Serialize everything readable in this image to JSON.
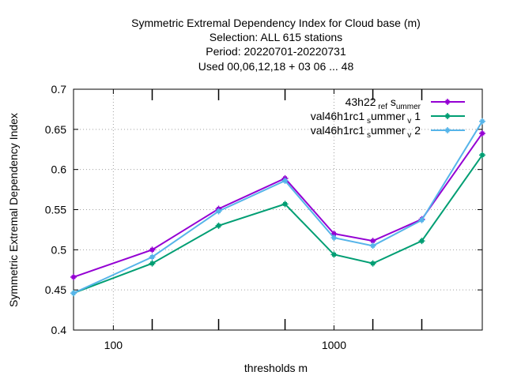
{
  "chart_data": {
    "type": "line",
    "title_lines": [
      "Symmetric Extremal Dependency Index  for Cloud base (m)",
      "Selection: ALL    615 stations",
      "Period: 20220701-20220731",
      "Used  00,06,12,18  + 03 06 ... 48"
    ],
    "xlabel": "thresholds m",
    "ylabel": "Symmetric Extremal Dependency Index",
    "x_scale": "log",
    "xlim": [
      66,
      4700
    ],
    "ylim": [
      0.4,
      0.7
    ],
    "x_tick_labels": [
      {
        "value": 100,
        "label": "100"
      },
      {
        "value": 1000,
        "label": "1000"
      }
    ],
    "y_tick_labels": [
      {
        "value": 0.4,
        "label": "0.4"
      },
      {
        "value": 0.45,
        "label": "0.45"
      },
      {
        "value": 0.5,
        "label": "0.5"
      },
      {
        "value": 0.55,
        "label": "0.55"
      },
      {
        "value": 0.6,
        "label": "0.6"
      },
      {
        "value": 0.65,
        "label": "0.65"
      },
      {
        "value": 0.7,
        "label": "0.7"
      }
    ],
    "x_tick_marks": [
      150,
      300,
      600,
      1500,
      2500
    ],
    "grid": true,
    "legend_position": "top-right",
    "x": [
      66,
      150,
      300,
      600,
      1000,
      1500,
      2500,
      4700
    ],
    "series": [
      {
        "name": "43h22_ref_summer",
        "legend_main": "43h22",
        "legend_sub": [
          " ref",
          " s",
          "ummer"
        ],
        "color": "#9400d3",
        "values": [
          0.466,
          0.5,
          0.551,
          0.589,
          0.52,
          0.511,
          0.538,
          0.645
        ]
      },
      {
        "name": "val46h1rc1_summer_v1",
        "legend_main": "val46h1rc1",
        "legend_sub": [
          " s",
          "ummer",
          " v",
          " 1"
        ],
        "color": "#009e73",
        "values": [
          0.446,
          0.483,
          0.53,
          0.557,
          0.494,
          0.483,
          0.511,
          0.618
        ]
      },
      {
        "name": "val46h1rc1_summer_v2",
        "legend_main": "val46h1rc1",
        "legend_sub": [
          " s",
          "ummer",
          " v",
          " 2"
        ],
        "color": "#56b4e9",
        "values": [
          0.446,
          0.491,
          0.548,
          0.586,
          0.515,
          0.505,
          0.537,
          0.66
        ]
      }
    ]
  }
}
